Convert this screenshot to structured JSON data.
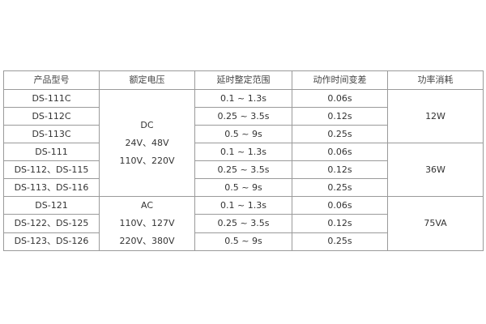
{
  "headers": [
    "产品型号",
    "额定电压",
    "延时整定范围",
    "动作时间变差",
    "功率消耗"
  ],
  "rows": [
    {
      "model": "DS-111C",
      "range": "0.1 ~ 1.3s",
      "variation": "0.06s"
    },
    {
      "model": "DS-112C",
      "range": "0.25 ~ 3.5s",
      "variation": "0.12s"
    },
    {
      "model": "DS-113C",
      "range": "0.5 ~ 9s",
      "variation": "0.25s"
    },
    {
      "model": "DS-111",
      "range": "0.1 ~ 1.3s",
      "variation": "0.06s"
    },
    {
      "model": "DS-112、DS-115",
      "range": "0.25 ~ 3.5s",
      "variation": "0.12s"
    },
    {
      "model": "DS-113、DS-116",
      "range": "0.5 ~ 9s",
      "variation": "0.25s"
    },
    {
      "model": "DS-121",
      "range": "0.1 ~ 1.3s",
      "variation": "0.06s"
    },
    {
      "model": "DS-122、DS-125",
      "range": "0.25 ~ 3.5s",
      "variation": "0.12s"
    },
    {
      "model": "DS-123、DS-126",
      "range": "0.5 ~ 9s",
      "variation": "0.25s"
    }
  ],
  "voltage_groups": [
    {
      "lines": [
        "DC",
        "24V、48V",
        "110V、220V"
      ]
    },
    {
      "lines": [
        "AC",
        "110V、127V",
        "220V、380V"
      ]
    }
  ],
  "power_groups": [
    "12W",
    "36W",
    "75VA"
  ]
}
